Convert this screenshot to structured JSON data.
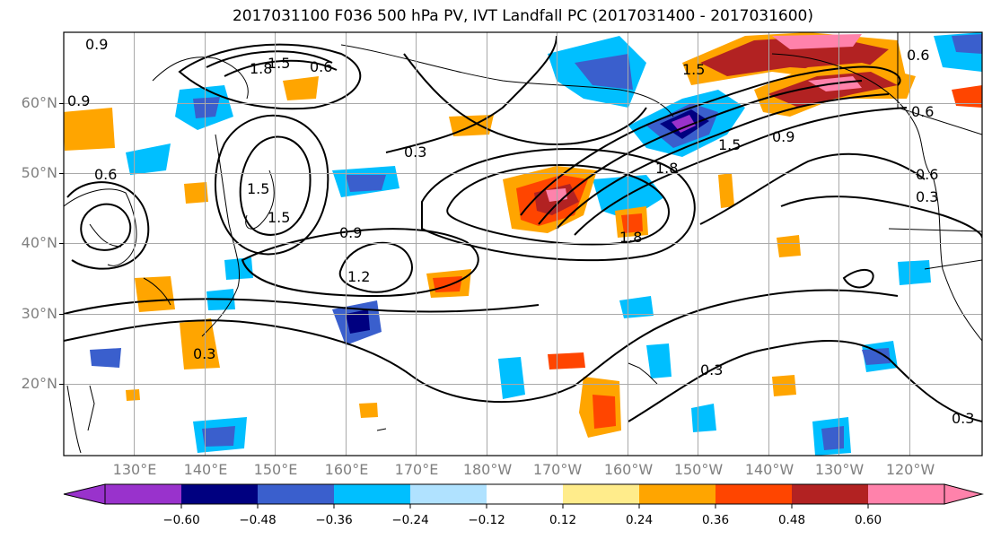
{
  "title": "2017031100 F036 500 hPa PV, IVT Landfall PC (2017031400 - 2017031600)",
  "map": {
    "lat_labels": [
      "60°N",
      "50°N",
      "40°N",
      "30°N",
      "20°N"
    ],
    "lon_labels": [
      "130°E",
      "140°E",
      "150°E",
      "160°E",
      "170°E",
      "180°W",
      "170°W",
      "160°W",
      "150°W",
      "140°W",
      "130°W",
      "120°W"
    ],
    "contour_labels": [
      "0.9",
      "0.6",
      "0.9",
      "1.8",
      "1.5",
      "0.6",
      "1.5",
      "0.6",
      "0.3",
      "0.6",
      "1.5",
      "0.9",
      "1.2",
      "0.3",
      "1.5",
      "1.8",
      "1.8",
      "1.5",
      "0.9",
      "0.6",
      "0.3",
      "0.3",
      "0.3"
    ]
  },
  "colorbar": {
    "ticks": [
      "−0.60",
      "−0.48",
      "−0.36",
      "−0.24",
      "−0.12",
      "0.12",
      "0.24",
      "0.36",
      "0.48",
      "0.60"
    ],
    "colors": [
      "#9932cc",
      "#000080",
      "#3a5fcd",
      "#00bfff",
      "#b0e2ff",
      "#ffffff",
      "#ffec8b",
      "#ffa500",
      "#ff4500",
      "#b22222",
      "#ff82ab"
    ]
  }
}
